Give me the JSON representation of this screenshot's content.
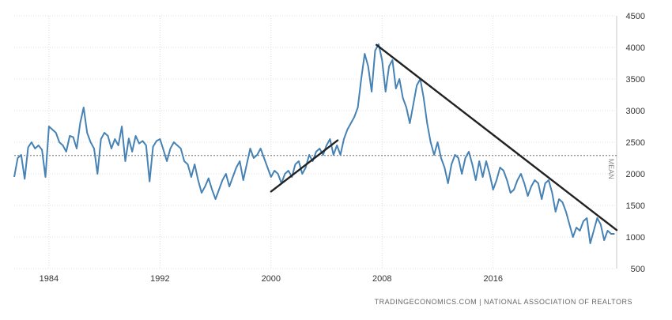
{
  "chart_data": {
    "type": "line",
    "title": "",
    "xlabel": "",
    "ylabel": "",
    "x_ticks": [
      "1984",
      "1992",
      "2000",
      "2008",
      "2016"
    ],
    "y_ticks": [
      "500",
      "1000",
      "1500",
      "2000",
      "2500",
      "3000",
      "3500",
      "4000",
      "4500"
    ],
    "xlim": [
      1981.5,
      2024.9
    ],
    "ylim": [
      500,
      4500
    ],
    "grid": true,
    "mean": {
      "label": "MEAN",
      "value": 2290
    },
    "source": "TRADINGECONOMICS.COM | NATIONAL ASSOCIATION OF REALTORS",
    "series": [
      {
        "x": [
          1981.5,
          1981.75,
          1982.0,
          1982.25,
          1982.5,
          1982.75,
          1983.0,
          1983.25,
          1983.5,
          1983.75,
          1984.0,
          1984.25,
          1984.5,
          1984.75,
          1985.0,
          1985.25,
          1985.5,
          1985.75,
          1986.0,
          1986.25,
          1986.5,
          1986.75,
          1987.0,
          1987.25,
          1987.5,
          1987.75,
          1988.0,
          1988.25,
          1988.5,
          1988.75,
          1989.0,
          1989.25,
          1989.5,
          1989.75,
          1990.0,
          1990.25,
          1990.5,
          1990.75,
          1991.0,
          1991.25,
          1991.5,
          1991.75,
          1992.0,
          1992.25,
          1992.5,
          1992.75,
          1993.0,
          1993.25,
          1993.5,
          1993.75,
          1994.0,
          1994.25,
          1994.5,
          1994.75,
          1995.0,
          1995.25,
          1995.5,
          1995.75,
          1996.0,
          1996.25,
          1996.5,
          1996.75,
          1997.0,
          1997.25,
          1997.5,
          1997.75,
          1998.0,
          1998.25,
          1998.5,
          1998.75,
          1999.0,
          1999.25,
          1999.5,
          1999.75,
          2000.0,
          2000.25,
          2000.5,
          2000.75,
          2001.0,
          2001.25,
          2001.5,
          2001.75,
          2002.0,
          2002.25,
          2002.5,
          2002.75,
          2003.0,
          2003.25,
          2003.5,
          2003.75,
          2004.0,
          2004.25,
          2004.5,
          2004.75,
          2005.0,
          2005.25,
          2005.5,
          2005.75,
          2006.0,
          2006.25,
          2006.5,
          2006.75,
          2007.0,
          2007.25,
          2007.5,
          2007.75,
          2008.0,
          2008.25,
          2008.5,
          2008.75,
          2009.0,
          2009.25,
          2009.5,
          2009.75,
          2010.0,
          2010.25,
          2010.5,
          2010.75,
          2011.0,
          2011.25,
          2011.5,
          2011.75,
          2012.0,
          2012.25,
          2012.5,
          2012.75,
          2013.0,
          2013.25,
          2013.5,
          2013.75,
          2014.0,
          2014.25,
          2014.5,
          2014.75,
          2015.0,
          2015.25,
          2015.5,
          2015.75,
          2016.0,
          2016.25,
          2016.5,
          2016.75,
          2017.0,
          2017.25,
          2017.5,
          2017.75,
          2018.0,
          2018.25,
          2018.5,
          2018.75,
          2019.0,
          2019.25,
          2019.5,
          2019.75,
          2020.0,
          2020.25,
          2020.5,
          2020.75,
          2021.0,
          2021.25,
          2021.5,
          2021.75,
          2022.0,
          2022.25,
          2022.5,
          2022.75,
          2023.0,
          2023.25,
          2023.5,
          2023.75,
          2024.0,
          2024.25,
          2024.5,
          2024.75
        ],
        "values": [
          1950,
          2250,
          2300,
          1920,
          2420,
          2500,
          2400,
          2450,
          2380,
          1950,
          2750,
          2700,
          2650,
          2500,
          2450,
          2350,
          2600,
          2580,
          2400,
          2800,
          3050,
          2650,
          2500,
          2400,
          2000,
          2550,
          2650,
          2600,
          2400,
          2550,
          2450,
          2750,
          2200,
          2560,
          2350,
          2600,
          2480,
          2520,
          2450,
          1880,
          2430,
          2520,
          2550,
          2380,
          2200,
          2400,
          2500,
          2450,
          2400,
          2200,
          2150,
          1950,
          2150,
          1900,
          1700,
          1800,
          1930,
          1750,
          1600,
          1750,
          1900,
          2000,
          1800,
          1950,
          2100,
          2200,
          1900,
          2150,
          2400,
          2250,
          2300,
          2400,
          2250,
          2100,
          1950,
          2050,
          2000,
          1850,
          2000,
          2050,
          1950,
          2150,
          2200,
          2000,
          2100,
          2300,
          2200,
          2350,
          2400,
          2300,
          2450,
          2550,
          2300,
          2450,
          2300,
          2550,
          2700,
          2800,
          2900,
          3050,
          3500,
          3900,
          3700,
          3300,
          3950,
          4050,
          3800,
          3300,
          3700,
          3800,
          3350,
          3500,
          3200,
          3050,
          2800,
          3100,
          3400,
          3500,
          3200,
          2800,
          2500,
          2300,
          2500,
          2250,
          2100,
          1850,
          2150,
          2300,
          2250,
          2000,
          2250,
          2350,
          2150,
          1900,
          2200,
          1950,
          2200,
          2000,
          1750,
          1900,
          2100,
          2050,
          1900,
          1700,
          1750,
          1900,
          2000,
          1850,
          1650,
          1800,
          1900,
          1850,
          1600,
          1850,
          1900,
          1700,
          1400,
          1600,
          1550,
          1400,
          1200,
          1000,
          1150,
          1100,
          1250,
          1300,
          900,
          1100,
          1300,
          1200,
          950,
          1100,
          1050,
          1050
        ]
      }
    ],
    "trendlines": [
      {
        "x": [
          2000.0,
          2004.8
        ],
        "values": [
          1720,
          2530
        ]
      },
      {
        "x": [
          2007.6,
          2024.9
        ],
        "values": [
          4040,
          1110
        ]
      }
    ]
  }
}
